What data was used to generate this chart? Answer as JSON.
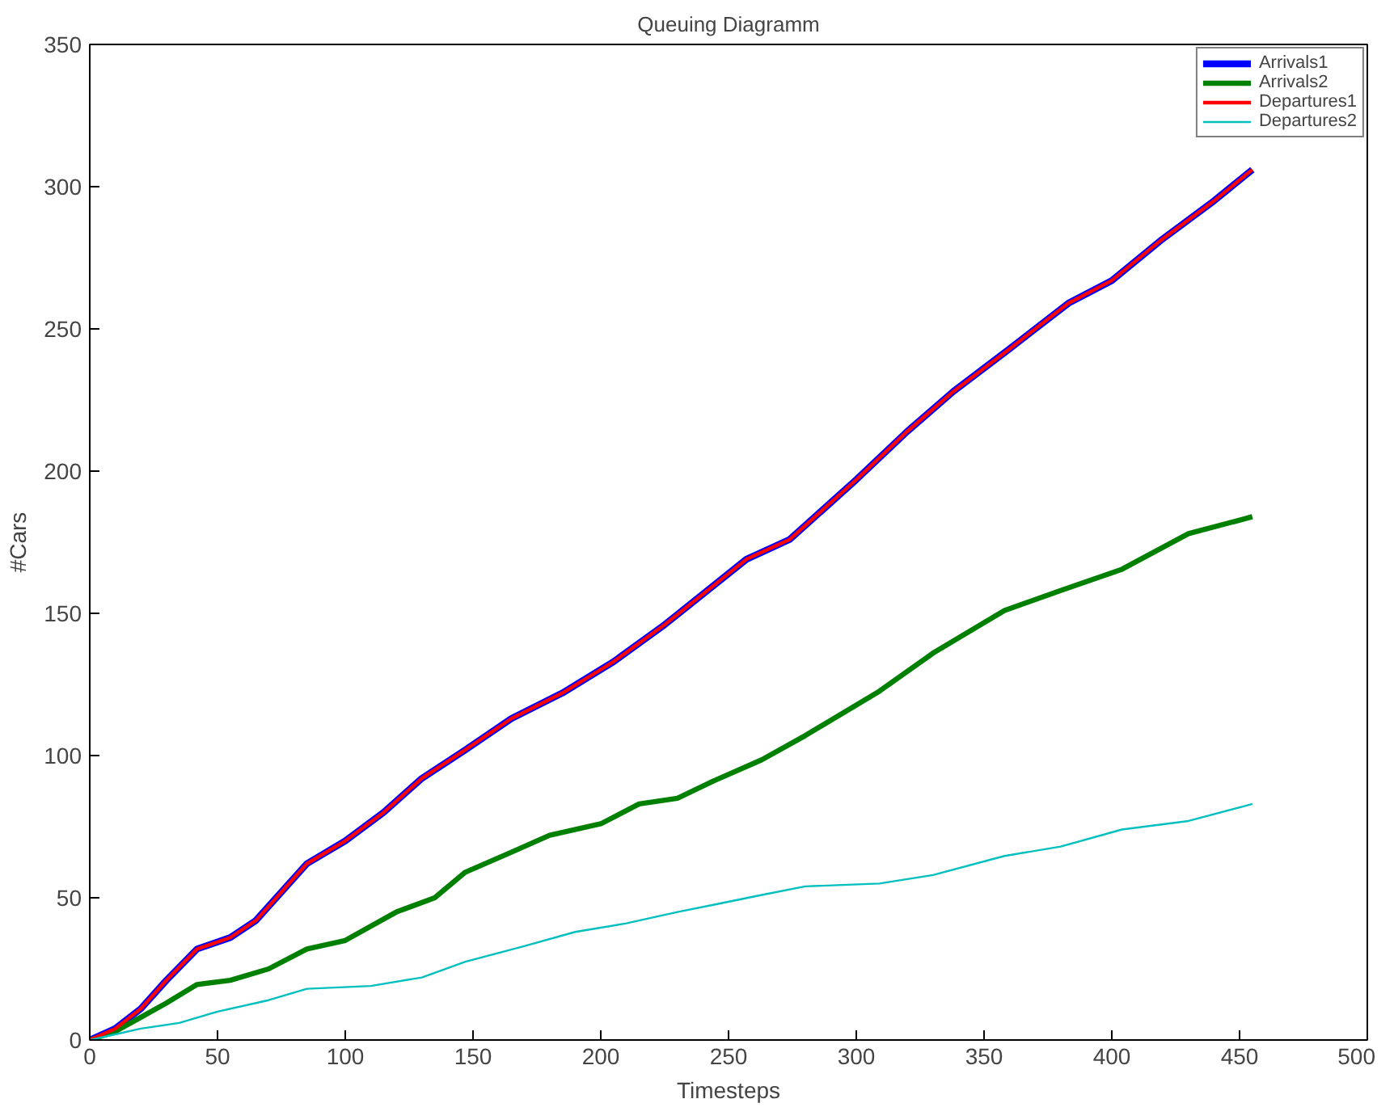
{
  "chart_data": {
    "type": "line",
    "title": "Queuing Diagramm",
    "xlabel": "Timesteps",
    "ylabel": "#Cars",
    "xlim": [
      0,
      500
    ],
    "ylim": [
      0,
      350
    ],
    "xticks": [
      0,
      50,
      100,
      150,
      200,
      250,
      300,
      350,
      400,
      450,
      500
    ],
    "yticks": [
      0,
      50,
      100,
      150,
      200,
      250,
      300,
      350
    ],
    "grid": false,
    "legend": "top right",
    "line_style": "solid",
    "series": [
      {
        "name": "Arrivals1",
        "color": "#0000ff",
        "x": [
          0,
          10,
          20,
          30,
          42,
          55,
          65,
          85,
          100,
          115,
          130,
          147,
          165,
          185,
          205,
          225,
          257,
          274,
          300,
          320,
          338,
          360,
          383,
          400,
          419,
          440,
          455
        ],
        "values": [
          0,
          4,
          11,
          21,
          32,
          36,
          42,
          62,
          70,
          80,
          92,
          102,
          113,
          122,
          133,
          146,
          169,
          176,
          197,
          214,
          228,
          243,
          259,
          267,
          281,
          295,
          306
        ]
      },
      {
        "name": "Arrivals2",
        "color": "#008000",
        "x": [
          0,
          10,
          20,
          30,
          42,
          55,
          70,
          85,
          100,
          120,
          135,
          147,
          165,
          180,
          200,
          215,
          230,
          244,
          263,
          280,
          309,
          330,
          358,
          380,
          404,
          430,
          451,
          455
        ],
        "values": [
          0,
          3,
          8,
          13,
          19.5,
          21,
          25,
          32,
          35,
          45,
          50,
          59,
          66,
          72,
          76,
          83,
          85,
          91,
          98.5,
          107,
          122.6,
          136,
          151,
          158,
          165.5,
          178,
          183,
          184
        ]
      },
      {
        "name": "Departures1",
        "color": "#ff0000",
        "x": [
          0,
          10,
          20,
          30,
          42,
          55,
          65,
          85,
          100,
          115,
          130,
          147,
          165,
          185,
          205,
          225,
          257,
          274,
          300,
          320,
          338,
          360,
          383,
          400,
          419,
          440,
          455
        ],
        "values": [
          0,
          4,
          11,
          21,
          32,
          36,
          42,
          62,
          70,
          80,
          92,
          102,
          113,
          122,
          133,
          146,
          169,
          176,
          197,
          214,
          228,
          243,
          259,
          267,
          281,
          295,
          306
        ]
      },
      {
        "name": "Departures2",
        "color": "#00bfbf",
        "x": [
          0,
          10,
          20,
          35,
          50,
          70,
          85,
          110,
          130,
          147,
          170,
          190,
          210,
          230,
          244,
          263,
          280,
          309,
          330,
          358,
          380,
          404,
          430,
          451,
          455
        ],
        "values": [
          0,
          2,
          4,
          6,
          10,
          14,
          18,
          19,
          22,
          27.5,
          33,
          38,
          41,
          45,
          47.5,
          51,
          54,
          55,
          58,
          64.7,
          68,
          74,
          77,
          82,
          83
        ]
      }
    ]
  }
}
